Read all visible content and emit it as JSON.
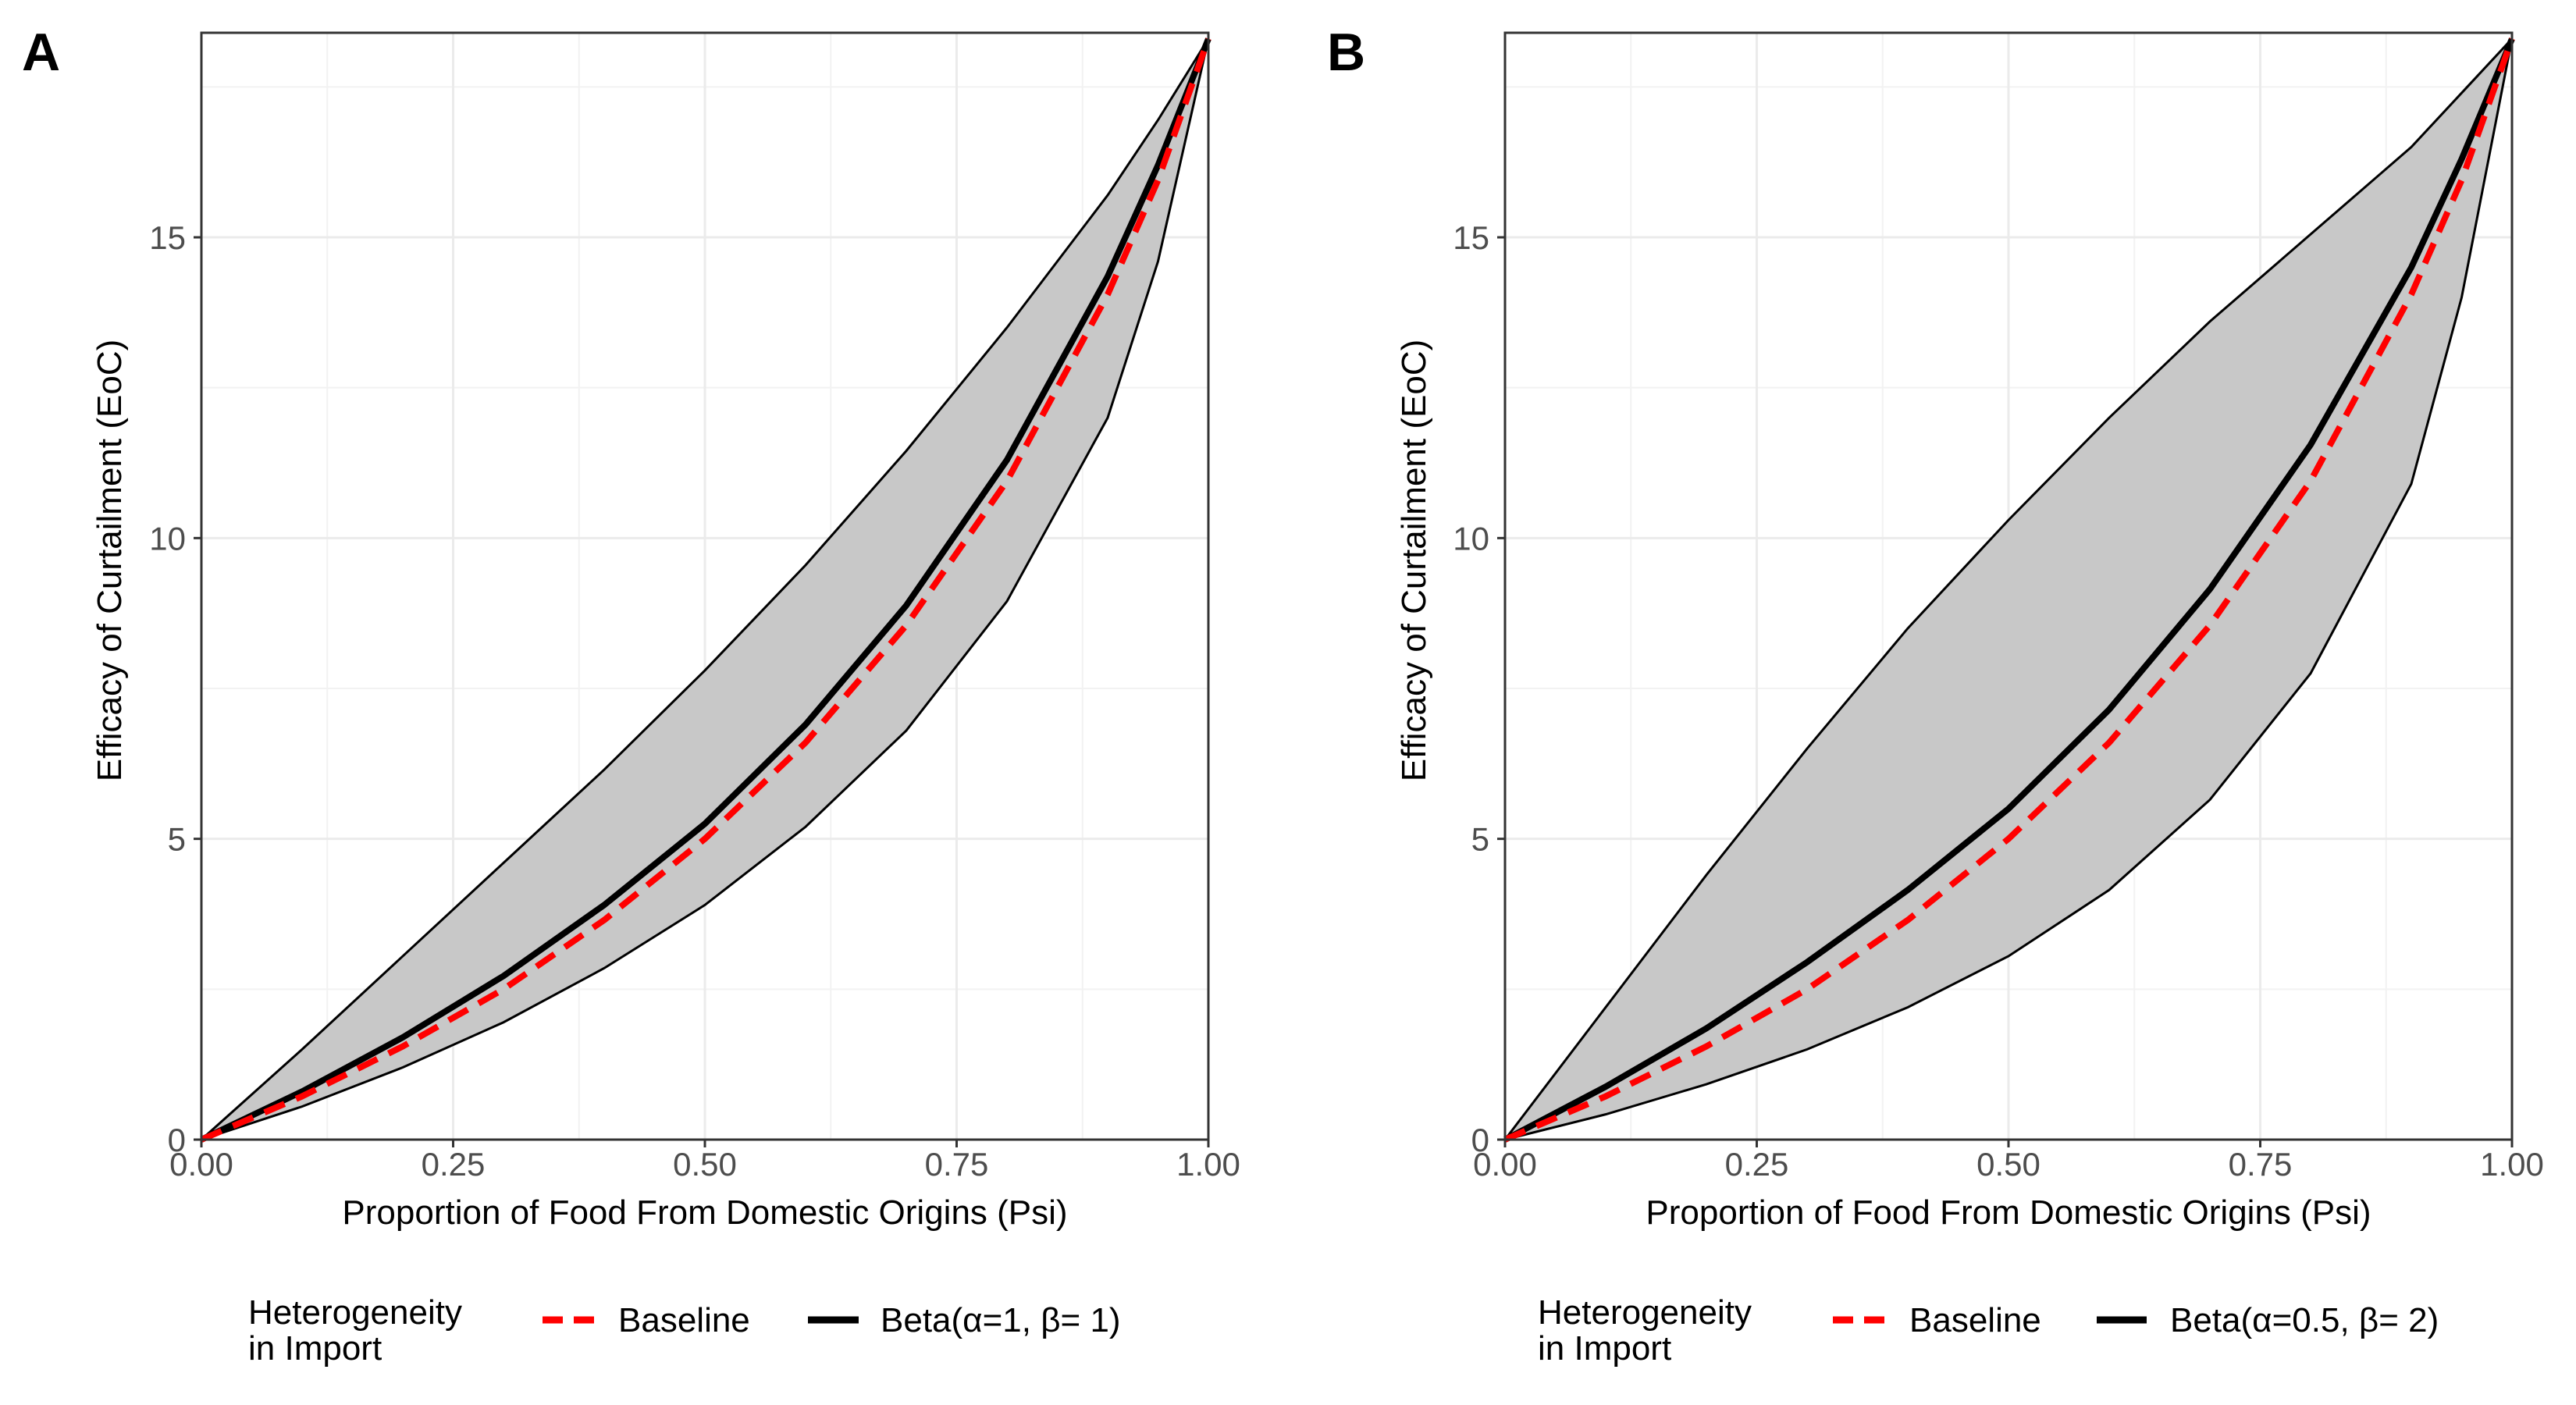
{
  "chart_data": [
    {
      "type": "line",
      "panel_label": "A",
      "xlabel": "Proportion of Food From Domestic Origins (Psi)",
      "ylabel": "Efficacy of Curtailment (EoC)",
      "xlim": [
        0,
        1
      ],
      "ylim": [
        0,
        18.4
      ],
      "x_ticks": [
        0,
        0.25,
        0.5,
        0.75,
        1
      ],
      "x_tick_labels": [
        "0.00",
        "0.25",
        "0.50",
        "0.75",
        "1.00"
      ],
      "y_ticks": [
        0,
        5,
        10,
        15
      ],
      "y_tick_labels": [
        "0",
        "5",
        "10",
        "15"
      ],
      "grid": true,
      "legend_position": "bottom",
      "legend_title": "Heterogeneity\n in Import",
      "x": [
        0,
        0.1,
        0.2,
        0.3,
        0.4,
        0.5,
        0.6,
        0.7,
        0.8,
        0.9,
        0.95,
        1.0
      ],
      "ribbon": {
        "upper": [
          0,
          1.5,
          3.05,
          4.6,
          6.15,
          7.8,
          9.55,
          11.45,
          13.5,
          15.7,
          16.95,
          18.3
        ],
        "lower": [
          0,
          0.55,
          1.2,
          1.95,
          2.85,
          3.9,
          5.2,
          6.8,
          8.95,
          12.0,
          14.6,
          18.3
        ]
      },
      "series": [
        {
          "name": "Baseline",
          "color": "#ff0000",
          "style": "dashed",
          "values": [
            0,
            0.72,
            1.55,
            2.5,
            3.65,
            5.0,
            6.6,
            8.55,
            10.95,
            14.05,
            15.95,
            18.3
          ]
        },
        {
          "name": "Beta(α=1, β= 1)",
          "color": "#000000",
          "style": "solid",
          "values": [
            0,
            0.8,
            1.7,
            2.72,
            3.9,
            5.25,
            6.9,
            8.88,
            11.3,
            14.35,
            16.2,
            18.3
          ]
        }
      ]
    },
    {
      "type": "line",
      "panel_label": "B",
      "xlabel": "Proportion of Food From Domestic Origins (Psi)",
      "ylabel": "Efficacy of Curtailment (EoC)",
      "xlim": [
        0,
        1
      ],
      "ylim": [
        0,
        18.4
      ],
      "x_ticks": [
        0,
        0.25,
        0.5,
        0.75,
        1
      ],
      "x_tick_labels": [
        "0.00",
        "0.25",
        "0.50",
        "0.75",
        "1.00"
      ],
      "y_ticks": [
        0,
        5,
        10,
        15
      ],
      "y_tick_labels": [
        "0",
        "5",
        "10",
        "15"
      ],
      "grid": true,
      "legend_position": "bottom",
      "legend_title": "Heterogeneity\n in Import",
      "x": [
        0,
        0.1,
        0.2,
        0.3,
        0.4,
        0.5,
        0.6,
        0.7,
        0.8,
        0.9,
        0.95,
        1.0
      ],
      "ribbon": {
        "upper": [
          0,
          2.2,
          4.4,
          6.5,
          8.5,
          10.3,
          12.0,
          13.6,
          15.05,
          16.5,
          17.4,
          18.3
        ],
        "lower": [
          0,
          0.42,
          0.92,
          1.5,
          2.2,
          3.05,
          4.15,
          5.65,
          7.75,
          10.9,
          14.0,
          18.3
        ]
      },
      "series": [
        {
          "name": "Baseline",
          "color": "#ff0000",
          "style": "dashed",
          "values": [
            0,
            0.72,
            1.55,
            2.5,
            3.65,
            5.0,
            6.6,
            8.55,
            10.95,
            14.05,
            15.95,
            18.3
          ]
        },
        {
          "name": "Beta(α=0.5, β= 2)",
          "color": "#000000",
          "style": "solid",
          "values": [
            0,
            0.88,
            1.85,
            2.95,
            4.15,
            5.5,
            7.15,
            9.15,
            11.55,
            14.5,
            16.3,
            18.3
          ]
        }
      ]
    }
  ]
}
